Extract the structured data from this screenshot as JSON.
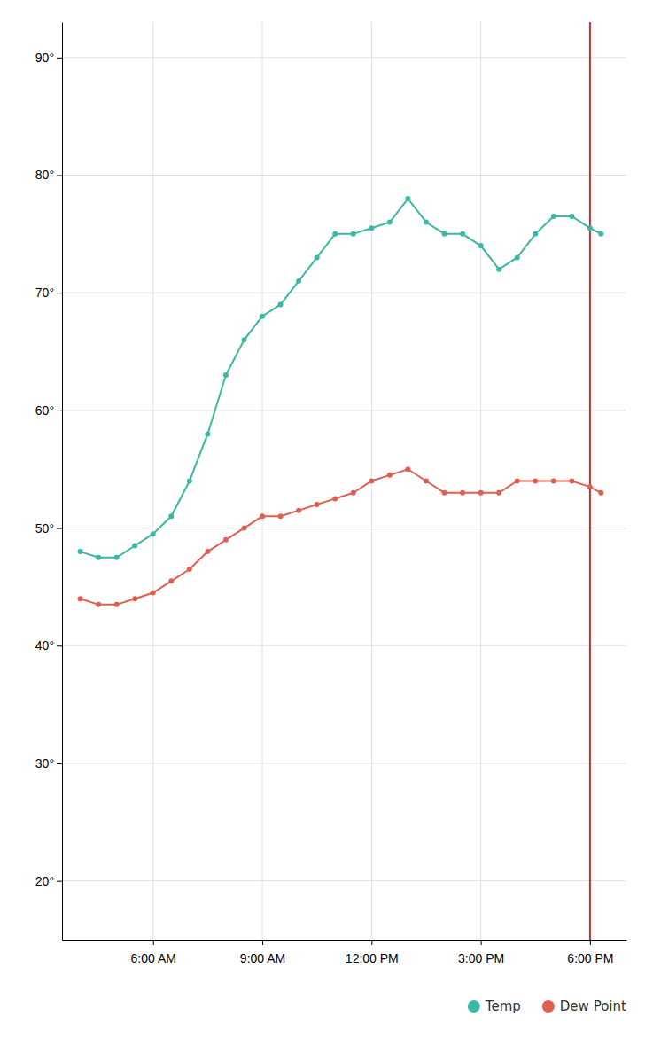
{
  "chart_data": {
    "type": "line",
    "x": [
      4.0,
      4.5,
      5.0,
      5.5,
      6.0,
      6.5,
      7.0,
      7.5,
      8.0,
      8.5,
      9.0,
      9.5,
      10.0,
      10.5,
      11.0,
      11.5,
      12.0,
      12.5,
      13.0,
      13.5,
      14.0,
      14.5,
      15.0,
      15.5,
      16.0,
      16.5,
      17.0,
      17.5,
      18.0,
      18.3
    ],
    "series": [
      {
        "name": "Temp",
        "color": "#3ab8a5",
        "values": [
          48,
          47.5,
          47.5,
          48.5,
          49.5,
          51,
          54,
          58,
          63,
          66,
          68,
          69,
          71,
          73,
          75,
          75,
          75.5,
          76,
          78,
          76,
          75,
          75,
          74,
          72,
          73,
          75,
          76.5,
          76.5,
          75.5,
          75
        ]
      },
      {
        "name": "Dew Point",
        "color": "#e06050",
        "values": [
          44,
          43.5,
          43.5,
          44,
          44.5,
          45.5,
          46.5,
          48,
          49,
          50,
          51,
          51,
          51.5,
          52,
          52.5,
          53,
          54,
          54.5,
          55,
          54,
          53,
          53,
          53,
          53,
          54,
          54,
          54,
          54,
          53.5,
          53
        ]
      }
    ],
    "xlim": [
      3.5,
      19.0
    ],
    "xticks": [
      {
        "value": 6,
        "label": "6:00 AM"
      },
      {
        "value": 9,
        "label": "9:00 AM"
      },
      {
        "value": 12,
        "label": "12:00 PM"
      },
      {
        "value": 15,
        "label": "3:00 PM"
      },
      {
        "value": 18,
        "label": "6:00 PM"
      }
    ],
    "ylim": [
      15,
      93
    ],
    "yticks": [
      {
        "value": 20,
        "label": "20°"
      },
      {
        "value": 30,
        "label": "30°"
      },
      {
        "value": 40,
        "label": "40°"
      },
      {
        "value": 50,
        "label": "50°"
      },
      {
        "value": 60,
        "label": "60°"
      },
      {
        "value": 70,
        "label": "70°"
      },
      {
        "value": 80,
        "label": "80°"
      },
      {
        "value": 90,
        "label": "90°"
      }
    ],
    "vline": {
      "x": 18,
      "color": "#c03030"
    },
    "grid": true,
    "marker": "circle",
    "legend": "bottom"
  }
}
